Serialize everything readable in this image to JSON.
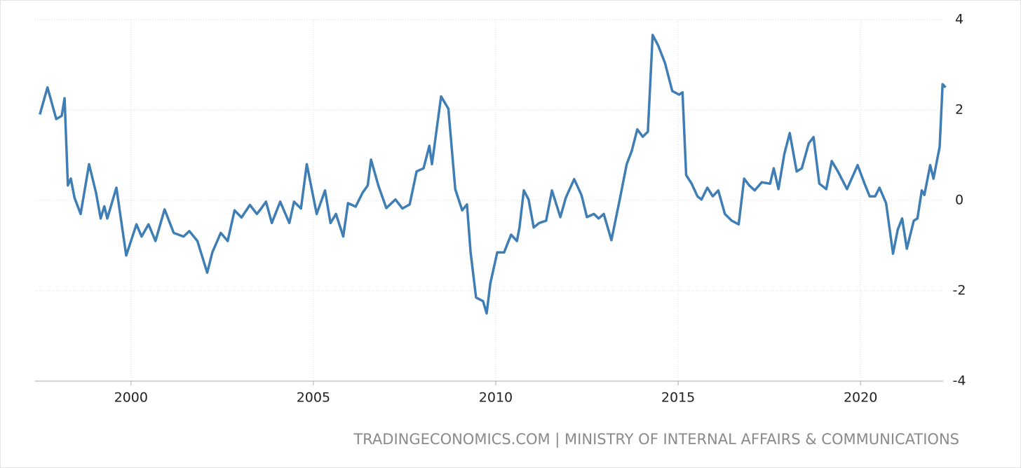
{
  "chart_data": {
    "type": "line",
    "source": "TRADINGECONOMICS.COM | MINISTRY OF INTERNAL AFFAIRS & COMMUNICATIONS",
    "x": [
      1997.5,
      1997.71,
      1997.95,
      1998.1,
      1998.18,
      1998.27,
      1998.35,
      1998.45,
      1998.62,
      1998.85,
      1999.04,
      1999.17,
      1999.27,
      1999.35,
      1999.6,
      1999.87,
      2000.15,
      2000.29,
      2000.48,
      2000.67,
      2000.92,
      2001.17,
      2001.44,
      2001.6,
      2001.82,
      2002.09,
      2002.23,
      2002.46,
      2002.65,
      2002.84,
      2003.03,
      2003.26,
      2003.45,
      2003.55,
      2003.7,
      2003.86,
      2004.09,
      2004.34,
      2004.47,
      2004.66,
      2004.82,
      2005.09,
      2005.32,
      2005.47,
      2005.62,
      2005.82,
      2005.95,
      2006.16,
      2006.35,
      2006.49,
      2006.58,
      2006.78,
      2007.0,
      2007.25,
      2007.44,
      2007.64,
      2007.83,
      2008.02,
      2008.18,
      2008.25,
      2008.5,
      2008.7,
      2008.89,
      2009.08,
      2009.21,
      2009.31,
      2009.46,
      2009.65,
      2009.75,
      2009.85,
      2010.04,
      2010.23,
      2010.42,
      2010.58,
      2010.65,
      2010.77,
      2010.9,
      2011.04,
      2011.19,
      2011.38,
      2011.54,
      2011.77,
      2011.92,
      2012.15,
      2012.35,
      2012.5,
      2012.69,
      2012.82,
      2012.96,
      2013.17,
      2013.4,
      2013.59,
      2013.73,
      2013.88,
      2014.03,
      2014.17,
      2014.3,
      2014.45,
      2014.64,
      2014.84,
      2015.03,
      2015.12,
      2015.22,
      2015.37,
      2015.53,
      2015.64,
      2015.8,
      2015.95,
      2016.1,
      2016.28,
      2016.47,
      2016.66,
      2016.81,
      2016.95,
      2017.1,
      2017.29,
      2017.52,
      2017.62,
      2017.75,
      2017.91,
      2018.06,
      2018.25,
      2018.39,
      2018.58,
      2018.71,
      2018.87,
      2019.06,
      2019.21,
      2019.38,
      2019.63,
      2019.92,
      2020.11,
      2020.25,
      2020.4,
      2020.52,
      2020.7,
      2020.89,
      2021.02,
      2021.14,
      2021.27,
      2021.46,
      2021.56,
      2021.68,
      2021.75,
      2021.91,
      2022.0,
      2022.1,
      2022.17,
      2022.25,
      2022.33
    ],
    "series": [
      {
        "color": "#3f7db5",
        "values": [
          1.9,
          2.5,
          1.8,
          1.87,
          2.26,
          0.33,
          0.48,
          0.06,
          -0.3,
          0.8,
          0.17,
          -0.4,
          -0.13,
          -0.4,
          0.28,
          -1.22,
          -0.53,
          -0.8,
          -0.53,
          -0.9,
          -0.2,
          -0.72,
          -0.8,
          -0.68,
          -0.9,
          -1.6,
          -1.15,
          -0.72,
          -0.9,
          -0.22,
          -0.38,
          -0.1,
          -0.3,
          -0.2,
          -0.03,
          -0.5,
          -0.03,
          -0.5,
          -0.03,
          -0.18,
          0.8,
          -0.3,
          0.22,
          -0.5,
          -0.3,
          -0.8,
          -0.06,
          -0.14,
          0.17,
          0.33,
          0.9,
          0.33,
          -0.17,
          0.02,
          -0.18,
          -0.09,
          0.64,
          0.71,
          1.21,
          0.8,
          2.3,
          2.03,
          0.25,
          -0.22,
          -0.09,
          -1.15,
          -2.15,
          -2.23,
          -2.5,
          -1.84,
          -1.15,
          -1.15,
          -0.76,
          -0.9,
          -0.6,
          0.22,
          0.02,
          -0.6,
          -0.5,
          -0.45,
          0.22,
          -0.37,
          0.06,
          0.47,
          0.12,
          -0.37,
          -0.3,
          -0.4,
          -0.3,
          -0.88,
          0.02,
          0.8,
          1.1,
          1.57,
          1.41,
          1.52,
          3.66,
          3.43,
          3.04,
          2.42,
          2.34,
          2.39,
          0.56,
          0.37,
          0.09,
          0.02,
          0.28,
          0.09,
          0.22,
          -0.3,
          -0.45,
          -0.53,
          0.48,
          0.33,
          0.22,
          0.4,
          0.37,
          0.71,
          0.25,
          1.02,
          1.49,
          0.64,
          0.71,
          1.26,
          1.4,
          0.37,
          0.25,
          0.87,
          0.64,
          0.25,
          0.78,
          0.37,
          0.09,
          0.09,
          0.28,
          -0.06,
          -1.18,
          -0.65,
          -0.4,
          -1.07,
          -0.45,
          -0.4,
          0.22,
          0.12,
          0.78,
          0.48,
          0.9,
          1.18,
          2.57,
          2.5
        ]
      }
    ],
    "xlim": [
      1997.37,
      2022.4
    ],
    "xticks": [
      2000,
      2005,
      2010,
      2015,
      2020
    ],
    "ylim": [
      -4,
      4
    ],
    "yticks": [
      -4,
      -2,
      0,
      2,
      4
    ],
    "grid": true
  }
}
